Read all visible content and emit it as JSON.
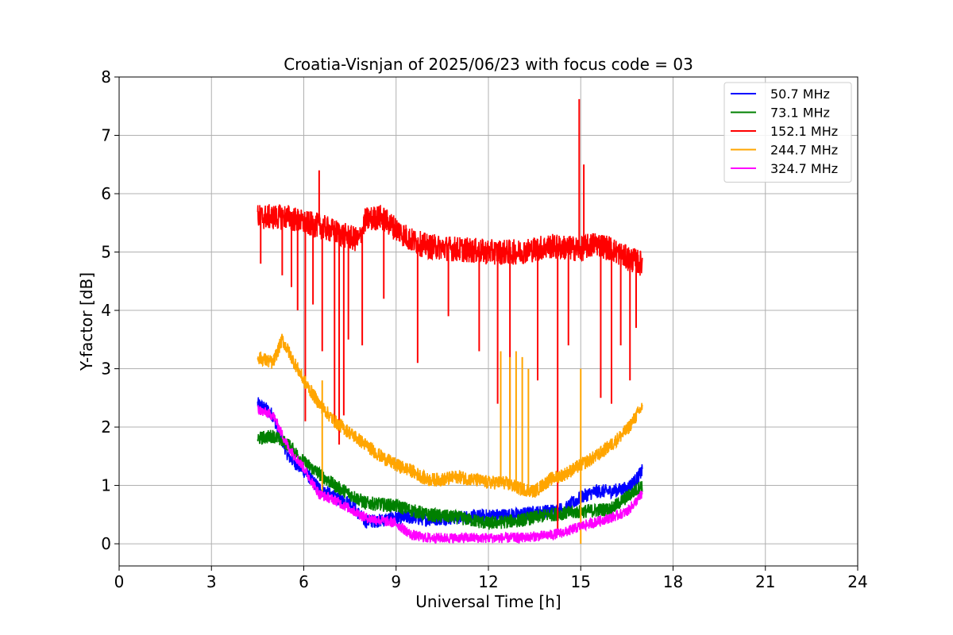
{
  "chart_data": {
    "type": "line",
    "title": "Croatia-Visnjan of 2025/06/23 with focus code = 03",
    "xlabel": "Universal Time [h]",
    "ylabel": "Y-factor [dB]",
    "xlim": [
      0,
      24
    ],
    "ylim": [
      -0.38,
      8
    ],
    "xticks": [
      0,
      3,
      6,
      9,
      12,
      15,
      18,
      21,
      24
    ],
    "yticks": [
      0,
      1,
      2,
      3,
      4,
      5,
      6,
      7,
      8
    ],
    "grid": true,
    "legend_position": "top-right",
    "series": [
      {
        "name": "  50.7 MHz",
        "color": "#0000ff",
        "noise": 0.12,
        "x": [
          4.5,
          4.8,
          5.0,
          5.2,
          5.5,
          6.0,
          6.5,
          7.0,
          7.5,
          8.0,
          8.5,
          9.0,
          9.5,
          10.0,
          11.0,
          12.0,
          13.0,
          13.8,
          14.5,
          15.0,
          15.5,
          16.0,
          16.5,
          16.8,
          17.0
        ],
        "y": [
          2.4,
          2.3,
          2.2,
          1.9,
          1.5,
          1.25,
          0.95,
          0.8,
          0.7,
          0.38,
          0.4,
          0.45,
          0.45,
          0.42,
          0.45,
          0.48,
          0.5,
          0.55,
          0.6,
          0.8,
          0.9,
          0.9,
          0.95,
          1.1,
          1.25
        ]
      },
      {
        "name": "  73.1 MHz",
        "color": "#008000",
        "noise": 0.12,
        "x": [
          4.5,
          5.0,
          5.5,
          6.0,
          6.5,
          7.0,
          7.5,
          8.0,
          9.0,
          10.0,
          11.0,
          12.0,
          13.0,
          14.0,
          15.0,
          16.0,
          16.5,
          17.0
        ],
        "y": [
          1.8,
          1.85,
          1.7,
          1.4,
          1.2,
          1.0,
          0.85,
          0.7,
          0.65,
          0.5,
          0.45,
          0.35,
          0.4,
          0.5,
          0.55,
          0.6,
          0.8,
          1.0
        ]
      },
      {
        "name": "152.1 MHz",
        "color": "#ff0000",
        "noise": 0.22,
        "x": [
          4.5,
          5.0,
          5.5,
          6.0,
          6.5,
          7.0,
          7.5,
          7.8,
          8.0,
          8.5,
          9.0,
          9.5,
          10.0,
          11.0,
          12.0,
          13.0,
          14.0,
          15.0,
          15.5,
          16.0,
          16.5,
          17.0
        ],
        "y": [
          5.6,
          5.6,
          5.6,
          5.5,
          5.45,
          5.35,
          5.25,
          5.2,
          5.55,
          5.6,
          5.4,
          5.2,
          5.1,
          5.05,
          5.0,
          5.0,
          5.1,
          5.05,
          5.15,
          5.05,
          4.9,
          4.8
        ],
        "spikes": [
          {
            "x": 4.6,
            "y": 4.8
          },
          {
            "x": 5.3,
            "y": 4.6
          },
          {
            "x": 5.6,
            "y": 4.4
          },
          {
            "x": 5.8,
            "y": 4.0
          },
          {
            "x": 6.05,
            "y": 2.1
          },
          {
            "x": 6.3,
            "y": 4.1
          },
          {
            "x": 6.5,
            "y": 6.4
          },
          {
            "x": 6.6,
            "y": 3.3
          },
          {
            "x": 7.0,
            "y": 2.0
          },
          {
            "x": 7.15,
            "y": 1.7
          },
          {
            "x": 7.3,
            "y": 2.2
          },
          {
            "x": 7.45,
            "y": 3.5
          },
          {
            "x": 7.9,
            "y": 3.4
          },
          {
            "x": 8.6,
            "y": 4.2
          },
          {
            "x": 9.7,
            "y": 3.1
          },
          {
            "x": 10.7,
            "y": 3.9
          },
          {
            "x": 11.7,
            "y": 3.3
          },
          {
            "x": 12.3,
            "y": 2.4
          },
          {
            "x": 12.7,
            "y": 2.0
          },
          {
            "x": 13.6,
            "y": 2.8
          },
          {
            "x": 14.25,
            "y": 0.2
          },
          {
            "x": 14.6,
            "y": 3.4
          },
          {
            "x": 14.95,
            "y": 7.62
          },
          {
            "x": 15.1,
            "y": 6.5
          },
          {
            "x": 15.65,
            "y": 2.5
          },
          {
            "x": 16.0,
            "y": 2.4
          },
          {
            "x": 16.3,
            "y": 3.4
          },
          {
            "x": 16.6,
            "y": 2.8
          },
          {
            "x": 16.8,
            "y": 3.7
          }
        ]
      },
      {
        "name": "244.7 MHz",
        "color": "#ffa500",
        "noise": 0.12,
        "x": [
          4.5,
          5.0,
          5.3,
          5.5,
          6.0,
          6.5,
          7.0,
          7.5,
          8.0,
          8.5,
          9.0,
          9.5,
          10.0,
          10.5,
          11.0,
          11.5,
          12.0,
          12.5,
          13.0,
          13.5,
          14.0,
          14.5,
          15.0,
          15.5,
          16.0,
          16.5,
          17.0
        ],
        "y": [
          3.2,
          3.1,
          3.5,
          3.3,
          2.8,
          2.4,
          2.1,
          1.9,
          1.7,
          1.5,
          1.35,
          1.25,
          1.1,
          1.1,
          1.15,
          1.1,
          1.05,
          1.05,
          0.95,
          0.9,
          1.1,
          1.2,
          1.35,
          1.5,
          1.7,
          1.95,
          2.35
        ],
        "spikes": [
          {
            "x": 6.6,
            "y": 0.9
          },
          {
            "x": 6.6,
            "y": 2.8
          },
          {
            "x": 12.4,
            "y": 3.3
          },
          {
            "x": 12.7,
            "y": 3.2
          },
          {
            "x": 12.9,
            "y": 3.3
          },
          {
            "x": 13.1,
            "y": 3.2
          },
          {
            "x": 13.3,
            "y": 3.0
          },
          {
            "x": 15.0,
            "y": 3.0
          },
          {
            "x": 15.0,
            "y": 0.0
          }
        ]
      },
      {
        "name": "324.7 MHz",
        "color": "#ff00ff",
        "noise": 0.09,
        "x": [
          4.5,
          5.0,
          5.5,
          6.0,
          6.5,
          7.0,
          7.5,
          8.0,
          9.0,
          9.5,
          10.0,
          11.0,
          12.0,
          13.0,
          14.0,
          14.5,
          15.0,
          16.0,
          16.5,
          17.0
        ],
        "y": [
          2.3,
          2.2,
          1.65,
          1.3,
          0.85,
          0.75,
          0.6,
          0.45,
          0.35,
          0.15,
          0.1,
          0.1,
          0.1,
          0.1,
          0.15,
          0.2,
          0.3,
          0.45,
          0.55,
          0.85
        ]
      }
    ]
  }
}
